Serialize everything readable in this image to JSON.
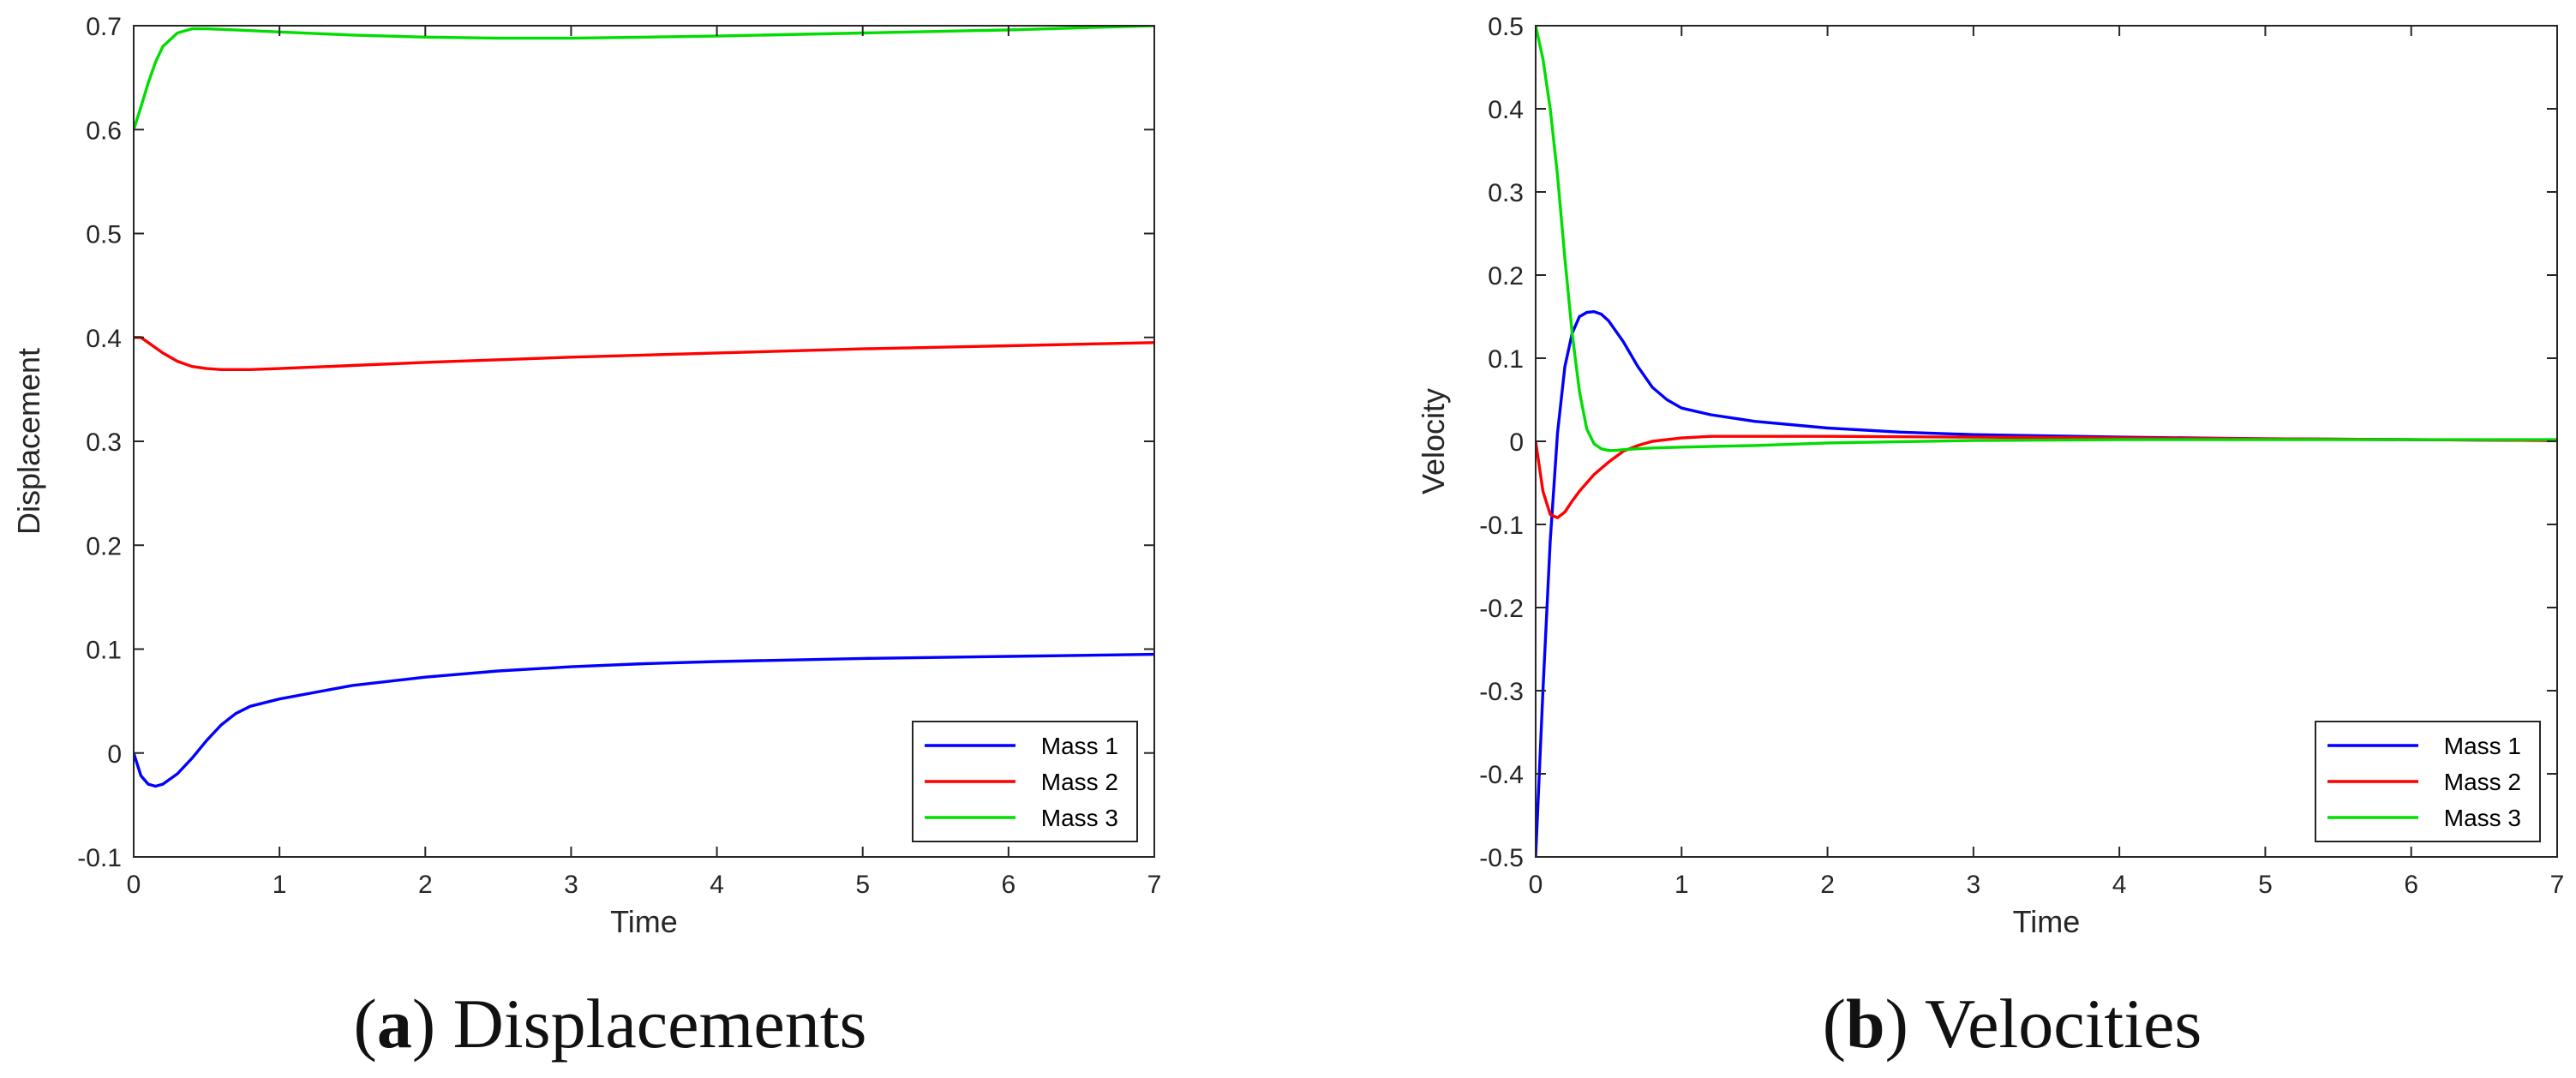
{
  "chart_data": [
    {
      "type": "line",
      "caption": {
        "letter": "a",
        "text": "Displacements"
      },
      "xlabel": "Time",
      "ylabel": "Displacement",
      "xlim": [
        0,
        7
      ],
      "ylim": [
        -0.1,
        0.7
      ],
      "xticks": [
        0,
        1,
        2,
        3,
        4,
        5,
        6,
        7
      ],
      "xtick_labels": [
        "0",
        "1",
        "2",
        "3",
        "4",
        "5",
        "6",
        "7"
      ],
      "yticks": [
        -0.1,
        0,
        0.1,
        0.2,
        0.3,
        0.4,
        0.5,
        0.6,
        0.7
      ],
      "ytick_labels": [
        "-0.1",
        "0",
        "0.1",
        "0.2",
        "0.3",
        "0.4",
        "0.5",
        "0.6",
        "0.7"
      ],
      "legend_position": "bottom-right",
      "series": [
        {
          "name": "Mass 1",
          "color": "#0000ff",
          "x": [
            0,
            0.05,
            0.1,
            0.15,
            0.2,
            0.3,
            0.4,
            0.5,
            0.6,
            0.7,
            0.8,
            1,
            1.5,
            2,
            2.5,
            3,
            3.5,
            4,
            5,
            6,
            7
          ],
          "y": [
            0,
            -0.022,
            -0.03,
            -0.032,
            -0.03,
            -0.02,
            -0.005,
            0.012,
            0.027,
            0.038,
            0.045,
            0.052,
            0.065,
            0.073,
            0.079,
            0.083,
            0.086,
            0.088,
            0.091,
            0.093,
            0.095
          ]
        },
        {
          "name": "Mass 2",
          "color": "#ff0000",
          "x": [
            0,
            0.05,
            0.1,
            0.2,
            0.3,
            0.4,
            0.5,
            0.6,
            0.8,
            1,
            1.5,
            2,
            3,
            4,
            5,
            6,
            7
          ],
          "y": [
            0.4,
            0.4,
            0.395,
            0.385,
            0.377,
            0.372,
            0.37,
            0.369,
            0.369,
            0.37,
            0.373,
            0.376,
            0.381,
            0.385,
            0.389,
            0.392,
            0.395
          ]
        },
        {
          "name": "Mass 3",
          "color": "#00dd00",
          "x": [
            0,
            0.05,
            0.1,
            0.15,
            0.2,
            0.3,
            0.4,
            0.5,
            0.7,
            1,
            1.5,
            2,
            2.5,
            3,
            4,
            5,
            6,
            7
          ],
          "y": [
            0.6,
            0.622,
            0.645,
            0.665,
            0.68,
            0.693,
            0.697,
            0.697,
            0.696,
            0.694,
            0.691,
            0.689,
            0.688,
            0.688,
            0.69,
            0.693,
            0.696,
            0.7
          ]
        }
      ]
    },
    {
      "type": "line",
      "caption": {
        "letter": "b",
        "text": "Velocities"
      },
      "xlabel": "Time",
      "ylabel": "Velocity",
      "xlim": [
        0,
        7
      ],
      "ylim": [
        -0.5,
        0.5
      ],
      "xticks": [
        0,
        1,
        2,
        3,
        4,
        5,
        6,
        7
      ],
      "xtick_labels": [
        "0",
        "1",
        "2",
        "3",
        "4",
        "5",
        "6",
        "7"
      ],
      "yticks": [
        -0.5,
        -0.4,
        -0.3,
        -0.2,
        -0.1,
        0,
        0.1,
        0.2,
        0.3,
        0.4,
        0.5
      ],
      "ytick_labels": [
        "-0.5",
        "-0.4",
        "-0.3",
        "-0.2",
        "-0.1",
        "0",
        "0.1",
        "0.2",
        "0.3",
        "0.4",
        "0.5"
      ],
      "legend_position": "bottom-right",
      "series": [
        {
          "name": "Mass 1",
          "color": "#0000ff",
          "x": [
            0,
            0.05,
            0.1,
            0.15,
            0.2,
            0.25,
            0.3,
            0.35,
            0.4,
            0.45,
            0.5,
            0.6,
            0.7,
            0.8,
            0.9,
            1,
            1.2,
            1.5,
            2,
            2.5,
            3,
            4,
            5,
            6,
            7
          ],
          "y": [
            -0.5,
            -0.3,
            -0.12,
            0.01,
            0.09,
            0.13,
            0.15,
            0.155,
            0.156,
            0.153,
            0.145,
            0.12,
            0.09,
            0.065,
            0.05,
            0.04,
            0.032,
            0.024,
            0.016,
            0.011,
            0.008,
            0.005,
            0.003,
            0.002,
            0.001
          ]
        },
        {
          "name": "Mass 2",
          "color": "#ff0000",
          "x": [
            0,
            0.05,
            0.1,
            0.15,
            0.2,
            0.25,
            0.3,
            0.4,
            0.5,
            0.6,
            0.7,
            0.8,
            1,
            1.2,
            1.5,
            2,
            3,
            4,
            5,
            6,
            7
          ],
          "y": [
            0,
            -0.06,
            -0.088,
            -0.092,
            -0.085,
            -0.072,
            -0.06,
            -0.04,
            -0.025,
            -0.012,
            -0.005,
            0,
            0.004,
            0.006,
            0.006,
            0.006,
            0.005,
            0.004,
            0.003,
            0.002,
            0.001
          ]
        },
        {
          "name": "Mass 3",
          "color": "#00dd00",
          "x": [
            0,
            0.05,
            0.1,
            0.15,
            0.2,
            0.25,
            0.3,
            0.35,
            0.4,
            0.45,
            0.5,
            0.55,
            0.6,
            0.7,
            0.8,
            1,
            1.5,
            2,
            3,
            4,
            5,
            6,
            7
          ],
          "y": [
            0.5,
            0.46,
            0.4,
            0.32,
            0.22,
            0.13,
            0.06,
            0.015,
            -0.003,
            -0.009,
            -0.011,
            -0.011,
            -0.01,
            -0.009,
            -0.008,
            -0.007,
            -0.005,
            -0.002,
            0.001,
            0.002,
            0.002,
            0.002,
            0.002
          ]
        }
      ]
    }
  ]
}
